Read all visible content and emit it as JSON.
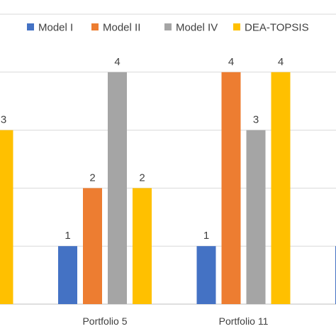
{
  "chart_data": {
    "type": "bar",
    "categories": [
      "",
      "Portfolio 5",
      "Portfolio 11",
      ""
    ],
    "series": [
      {
        "name": "Model I",
        "values": [
          null,
          1,
          1,
          1
        ],
        "color": "#4472C4"
      },
      {
        "name": "Model II",
        "values": [
          null,
          2,
          4,
          null
        ],
        "color": "#ED7D31"
      },
      {
        "name": "Model IV",
        "values": [
          null,
          4,
          3,
          null
        ],
        "color": "#A5A5A5"
      },
      {
        "name": "DEA-TOPSIS",
        "values": [
          3,
          2,
          4,
          null
        ],
        "color": "#FFC000"
      }
    ],
    "ylim": [
      0,
      5
    ],
    "grid": true,
    "legend": "top"
  }
}
